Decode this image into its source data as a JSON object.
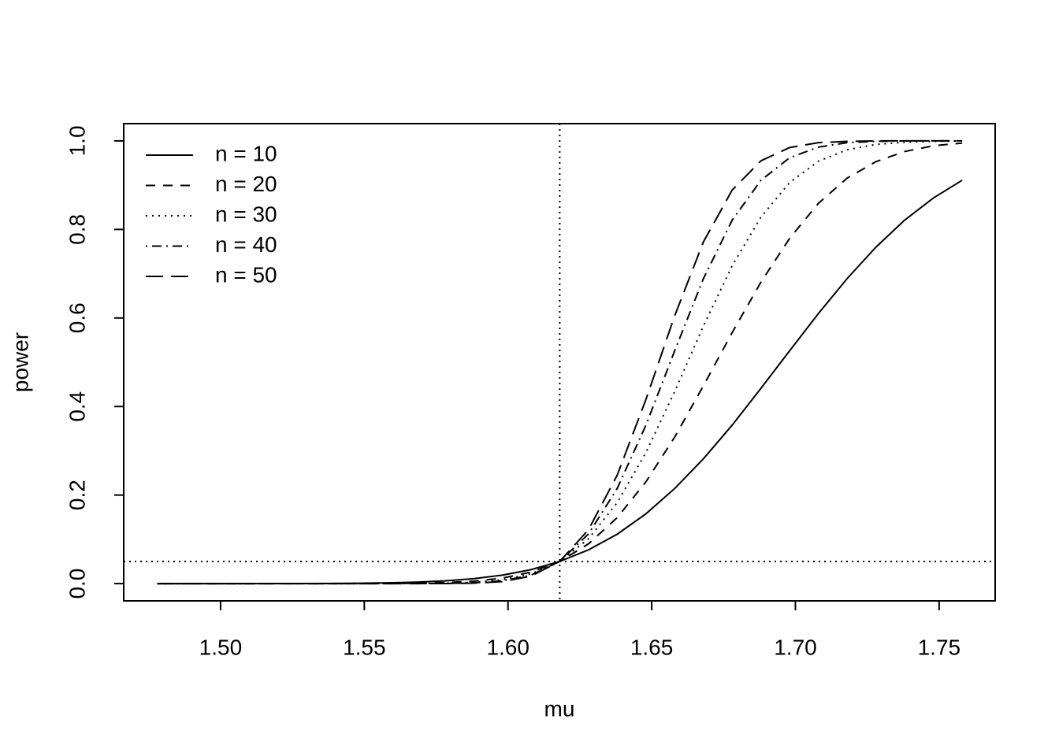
{
  "chart_data": {
    "type": "line",
    "x_label": "mu",
    "y_label": "power",
    "x": [
      1.478,
      1.488,
      1.498,
      1.508,
      1.518,
      1.528,
      1.538,
      1.548,
      1.558,
      1.568,
      1.578,
      1.588,
      1.598,
      1.608,
      1.618,
      1.628,
      1.638,
      1.648,
      1.658,
      1.668,
      1.678,
      1.688,
      1.698,
      1.708,
      1.718,
      1.728,
      1.738,
      1.748,
      1.758
    ],
    "series": [
      {
        "name": "n = 10",
        "color": "#000000",
        "dash": "none",
        "values": [
          0,
          0,
          0,
          0,
          0.0001,
          0.0002,
          0.0004,
          0.0008,
          0.0017,
          0.0033,
          0.0062,
          0.0111,
          0.0191,
          0.0315,
          0.05,
          0.0762,
          0.1116,
          0.1577,
          0.2148,
          0.282,
          0.358,
          0.441,
          0.526,
          0.61,
          0.689,
          0.76,
          0.821,
          0.871,
          0.911
        ]
      },
      {
        "name": "n = 20",
        "color": "#000000",
        "dash": "12 10",
        "values": [
          0,
          0,
          0,
          0,
          0,
          0,
          0,
          0.0001,
          0.0003,
          0.0008,
          0.0022,
          0.0054,
          0.0123,
          0.0258,
          0.05,
          0.0897,
          0.149,
          0.23,
          0.331,
          0.447,
          0.567,
          0.681,
          0.78,
          0.859,
          0.916,
          0.953,
          0.976,
          0.989,
          0.995
        ]
      },
      {
        "name": "n = 30",
        "color": "#000000",
        "dash": "2 6",
        "values": [
          0,
          0,
          0,
          0,
          0,
          0,
          0,
          0,
          0.0001,
          0.0002,
          0.0009,
          0.0029,
          0.0085,
          0.022,
          0.05,
          0.101,
          0.183,
          0.296,
          0.434,
          0.582,
          0.718,
          0.828,
          0.906,
          0.954,
          0.98,
          0.992,
          0.997,
          0.999,
          1.0
        ]
      },
      {
        "name": "n = 40",
        "color": "#000000",
        "dash": "2 6 12 6",
        "values": [
          0,
          0,
          0,
          0,
          0,
          0,
          0,
          0,
          0,
          0.0001,
          0.0004,
          0.0017,
          0.0062,
          0.0191,
          0.05,
          0.112,
          0.215,
          0.358,
          0.526,
          0.689,
          0.821,
          0.911,
          0.962,
          0.986,
          0.996,
          0.999,
          1.0,
          1.0,
          1.0
        ]
      },
      {
        "name": "n = 50",
        "color": "#000000",
        "dash": "22 10",
        "values": [
          0,
          0,
          0,
          0,
          0,
          0,
          0,
          0,
          0,
          0,
          0.0002,
          0.001,
          0.0046,
          0.0169,
          0.05,
          0.1216,
          0.245,
          0.416,
          0.605,
          0.772,
          0.889,
          0.955,
          0.985,
          0.996,
          0.999,
          1.0,
          1.0,
          1.0,
          1.0
        ]
      }
    ],
    "vline": 1.618,
    "hline": 0.05,
    "xlim": [
      1.4663,
      1.7695
    ],
    "ylim": [
      -0.039,
      1.039
    ],
    "xticks": [
      {
        "value": 1.5,
        "label": "1.50"
      },
      {
        "value": 1.55,
        "label": "1.55"
      },
      {
        "value": 1.6,
        "label": "1.60"
      },
      {
        "value": 1.65,
        "label": "1.65"
      },
      {
        "value": 1.7,
        "label": "1.70"
      },
      {
        "value": 1.75,
        "label": "1.75"
      }
    ],
    "yticks": [
      {
        "value": 0,
        "label": "0.0"
      },
      {
        "value": 0.2,
        "label": "0.2"
      },
      {
        "value": 0.4,
        "label": "0.4"
      },
      {
        "value": 0.6,
        "label": "0.6"
      },
      {
        "value": 0.8,
        "label": "0.8"
      },
      {
        "value": 1,
        "label": "1.0"
      }
    ],
    "legend_position": "top-left"
  }
}
